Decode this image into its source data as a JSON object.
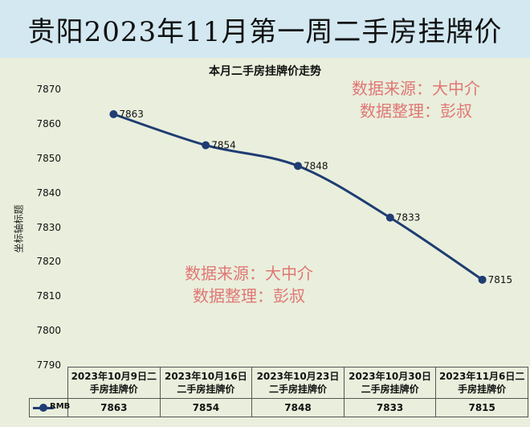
{
  "banner": {
    "title": "贵阳2023年11月第一周二手房挂牌价"
  },
  "watermarks": {
    "top": [
      "数据来源：大中介",
      "数据整理：彭叔"
    ],
    "middle": [
      "数据来源：大中介",
      "数据整理：彭叔"
    ]
  },
  "colors": {
    "series": "#1f3d73",
    "watermark": "#e07070",
    "banner": "#d3e8f1",
    "plot_bg": "#e9efdc"
  },
  "chart_data": {
    "type": "line",
    "title": "本月二手房挂牌价走势",
    "ylabel": "坐标轴标题",
    "xlabel": "",
    "ylim": [
      7790,
      7870
    ],
    "yticks": [
      "7870",
      "7860",
      "7850",
      "7840",
      "7830",
      "7820",
      "7810",
      "7800",
      "7790"
    ],
    "categories": [
      "2023年10月9日二手房挂牌价",
      "2023年10月16日二手房挂牌价",
      "2023年10月23日二手房挂牌价",
      "2023年10月30日二手房挂牌价",
      "2023年11月6日二手房挂牌价"
    ],
    "categories_line1": [
      "2023年10月9日二",
      "2023年10月16日",
      "2023年10月23日",
      "2023年10月30日",
      "2023年11月6日二"
    ],
    "categories_line2": [
      "手房挂牌价",
      "二手房挂牌价",
      "二手房挂牌价",
      "二手房挂牌价",
      "手房挂牌价"
    ],
    "series": [
      {
        "name": "RMB",
        "values": [
          7863,
          7854,
          7848,
          7833,
          7815
        ]
      }
    ],
    "data_labels": [
      "7863",
      "7854",
      "7848",
      "7833",
      "7815"
    ],
    "grid": false,
    "legend": "data-table"
  }
}
